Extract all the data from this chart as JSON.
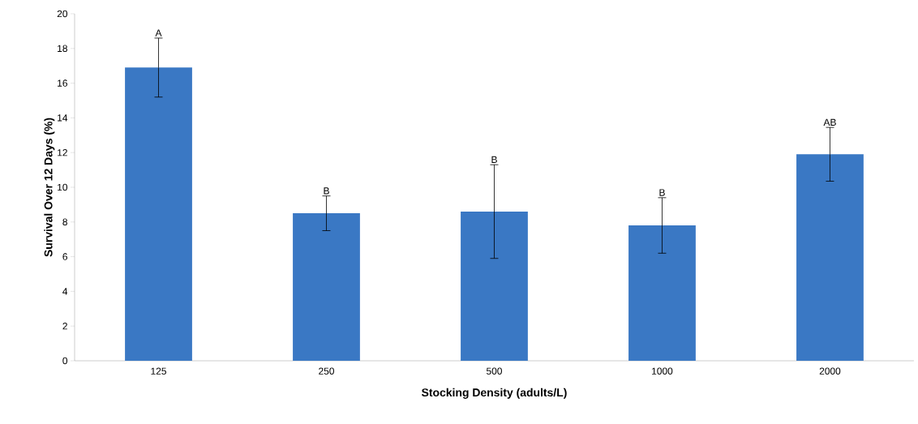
{
  "chart_data": {
    "type": "bar",
    "xlabel": "Stocking Density (adults/L)",
    "ylabel": "Survival Over 12 Days (%)",
    "categories": [
      "125",
      "250",
      "500",
      "1000",
      "2000"
    ],
    "values": [
      16.9,
      8.5,
      8.6,
      7.8,
      11.9
    ],
    "errors": [
      1.7,
      1.0,
      2.7,
      1.6,
      1.55
    ],
    "color": "#3a78c4",
    "ylim": [
      0,
      20
    ],
    "yticks": [
      0,
      2,
      4,
      6,
      8,
      10,
      12,
      14,
      16,
      18,
      20
    ],
    "grid": false,
    "annotations": [
      {
        "text": "A",
        "x": "125",
        "y": 18.6
      },
      {
        "text": "B",
        "x": "250",
        "y": 9.5
      },
      {
        "text": "B",
        "x": "500",
        "y": 11.3
      },
      {
        "text": "B",
        "x": "1000",
        "y": 9.4
      },
      {
        "text": "AB",
        "x": "2000",
        "y": 13.45
      }
    ]
  }
}
